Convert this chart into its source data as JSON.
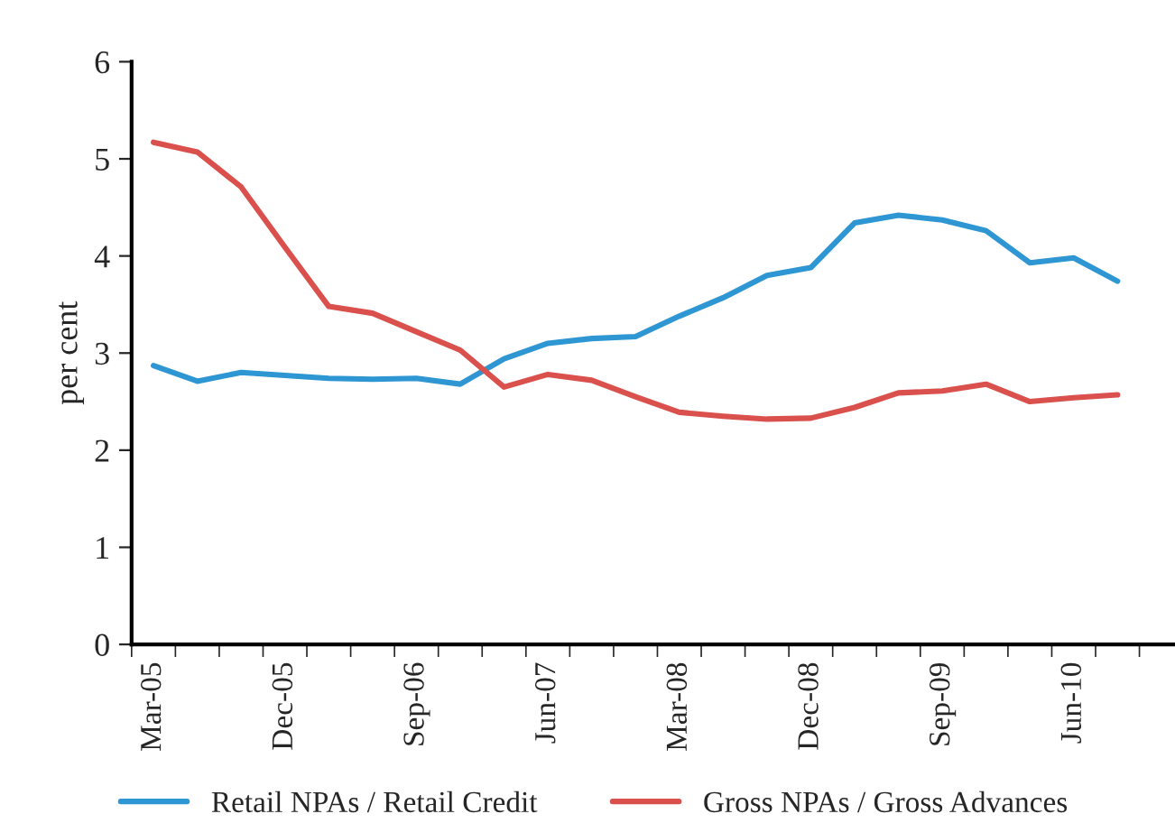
{
  "chart_data": {
    "type": "line",
    "ylabel": "per cent",
    "categories": [
      "Mar-05",
      null,
      null,
      "Dec-05",
      null,
      null,
      "Sep-06",
      null,
      null,
      "Jun-07",
      null,
      null,
      "Mar-08",
      null,
      null,
      "Dec-08",
      null,
      null,
      "Sep-09",
      null,
      null,
      "Jun-10",
      null,
      null
    ],
    "series": [
      {
        "name": "Retail NPAs / Retail Credit",
        "color": "#2e96d2",
        "values": [
          2.87,
          2.71,
          2.8,
          2.77,
          2.74,
          2.73,
          2.74,
          2.68,
          2.94,
          3.1,
          3.15,
          3.17,
          3.38,
          3.57,
          3.8,
          3.88,
          4.34,
          4.42,
          4.37,
          4.26,
          3.93,
          3.98,
          3.74,
          null
        ]
      },
      {
        "name": "Gross NPAs / Gross Advances",
        "color": "#d9504c",
        "values": [
          5.17,
          5.07,
          4.71,
          4.09,
          3.48,
          3.41,
          3.22,
          3.03,
          2.65,
          2.78,
          2.72,
          2.55,
          2.39,
          2.35,
          2.32,
          2.33,
          2.44,
          2.59,
          2.61,
          2.68,
          2.5,
          2.54,
          2.57,
          null
        ]
      }
    ],
    "ylim": [
      0,
      6
    ],
    "yticks": [
      0,
      1,
      2,
      3,
      4,
      5,
      6
    ],
    "grid": false,
    "legend": "bottom",
    "marker": "none",
    "line_style": "solid"
  }
}
